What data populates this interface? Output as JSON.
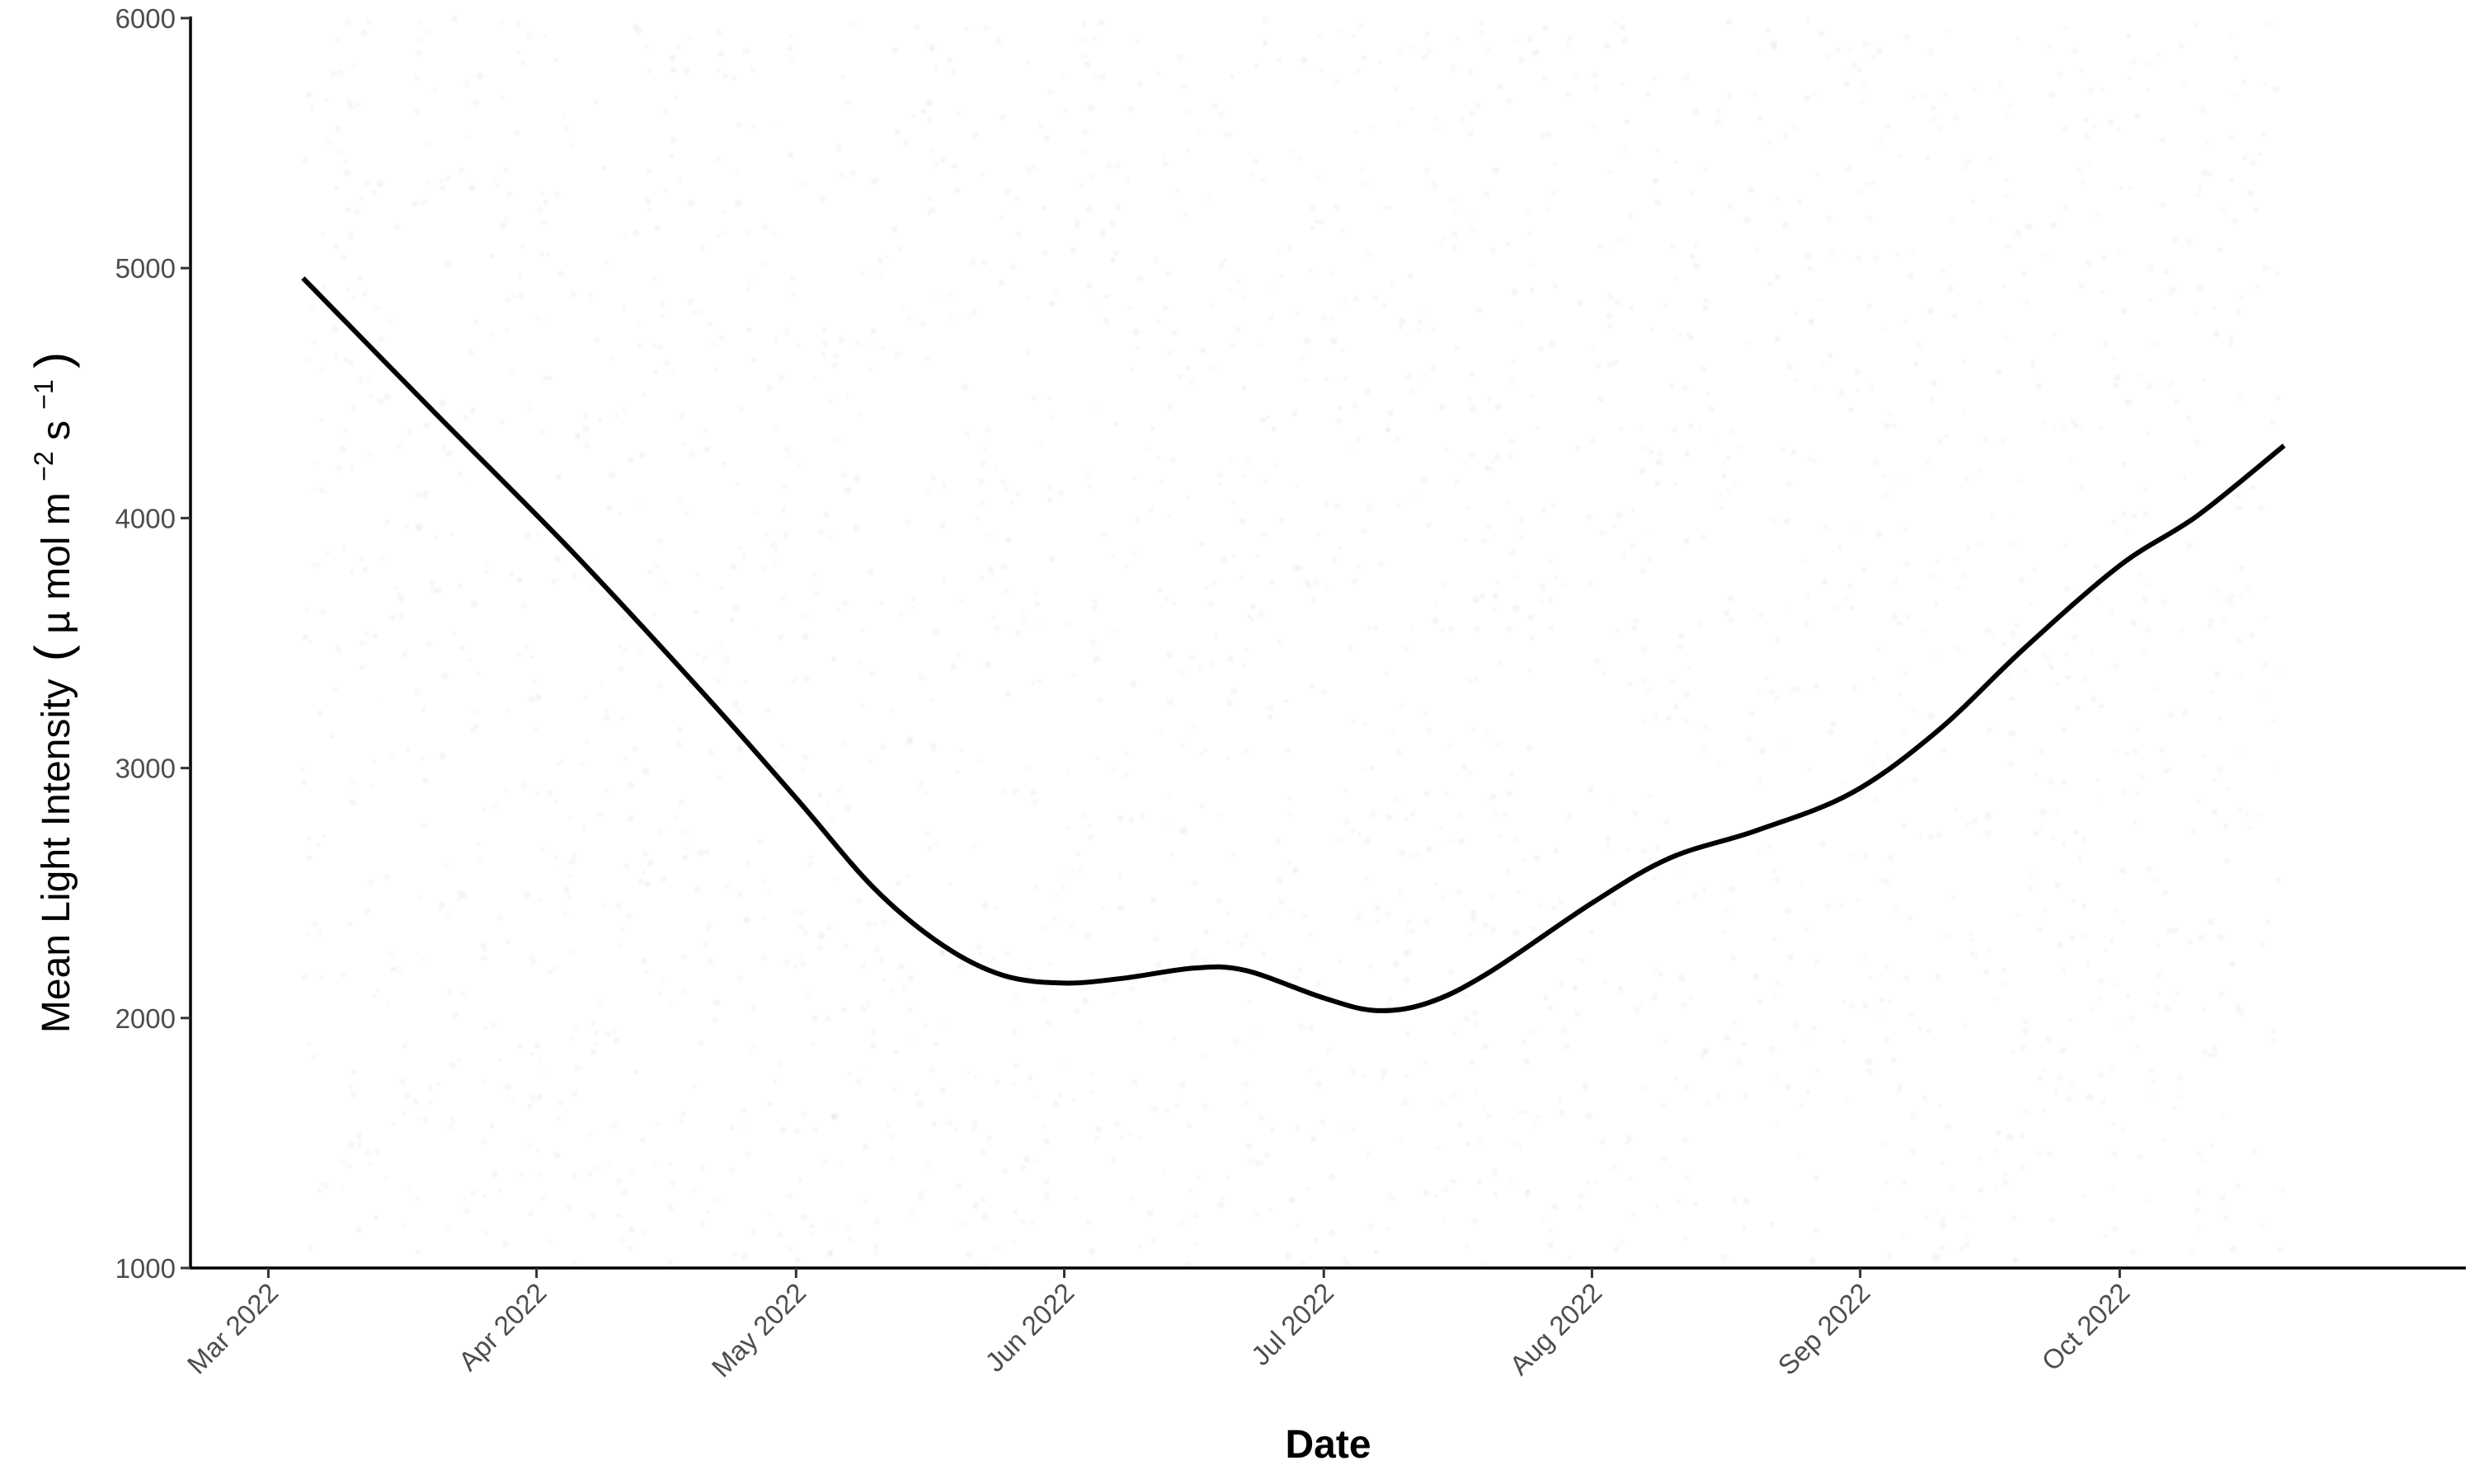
{
  "chart_data": {
    "type": "line",
    "title": "",
    "xlabel": "Date",
    "ylabel": {
      "prefix": "Mean Light Intensity",
      "unit_open": "(",
      "mu": "µ",
      "mol": "mol m",
      "exp1": "−2",
      "s": " s",
      "exp2": "−1",
      "unit_close": ")"
    },
    "x_axis": {
      "type": "date",
      "range": [
        "2022-02-20",
        "2022-11-10"
      ],
      "ticks": [
        {
          "date": "2022-03-01",
          "label": "Mar 2022"
        },
        {
          "date": "2022-04-01",
          "label": "Apr 2022"
        },
        {
          "date": "2022-05-01",
          "label": "May 2022"
        },
        {
          "date": "2022-06-01",
          "label": "Jun 2022"
        },
        {
          "date": "2022-07-01",
          "label": "Jul 2022"
        },
        {
          "date": "2022-08-01",
          "label": "Aug 2022"
        },
        {
          "date": "2022-09-01",
          "label": "Sep 2022"
        },
        {
          "date": "2022-10-01",
          "label": "Oct 2022"
        }
      ]
    },
    "y_axis": {
      "range": [
        1000,
        6000
      ],
      "ticks": [
        1000,
        2000,
        3000,
        4000,
        5000,
        6000
      ]
    },
    "grid": false,
    "legend": "none",
    "series": [
      {
        "color": "#000000",
        "points": [
          {
            "x": "2022-03-05",
            "y": 4960
          },
          {
            "x": "2022-03-20",
            "y": 4430
          },
          {
            "x": "2022-04-05",
            "y": 3870
          },
          {
            "x": "2022-04-20",
            "y": 3310
          },
          {
            "x": "2022-05-01",
            "y": 2880
          },
          {
            "x": "2022-05-10",
            "y": 2520
          },
          {
            "x": "2022-05-18",
            "y": 2290
          },
          {
            "x": "2022-05-25",
            "y": 2170
          },
          {
            "x": "2022-06-01",
            "y": 2140
          },
          {
            "x": "2022-06-08",
            "y": 2160
          },
          {
            "x": "2022-06-16",
            "y": 2200
          },
          {
            "x": "2022-06-22",
            "y": 2190
          },
          {
            "x": "2022-07-01",
            "y": 2080
          },
          {
            "x": "2022-07-07",
            "y": 2030
          },
          {
            "x": "2022-07-13",
            "y": 2060
          },
          {
            "x": "2022-07-20",
            "y": 2180
          },
          {
            "x": "2022-08-01",
            "y": 2460
          },
          {
            "x": "2022-08-10",
            "y": 2640
          },
          {
            "x": "2022-08-20",
            "y": 2750
          },
          {
            "x": "2022-08-31",
            "y": 2900
          },
          {
            "x": "2022-09-10",
            "y": 3150
          },
          {
            "x": "2022-09-20",
            "y": 3480
          },
          {
            "x": "2022-10-01",
            "y": 3810
          },
          {
            "x": "2022-10-10",
            "y": 4010
          },
          {
            "x": "2022-10-20",
            "y": 4290
          }
        ]
      }
    ],
    "background_points": {
      "description_visible": "faint grey scatter of raw observations",
      "color": "#9a9a9a",
      "x_range": [
        "2022-03-05",
        "2022-10-20"
      ],
      "y_range": [
        1000,
        6000
      ]
    }
  }
}
